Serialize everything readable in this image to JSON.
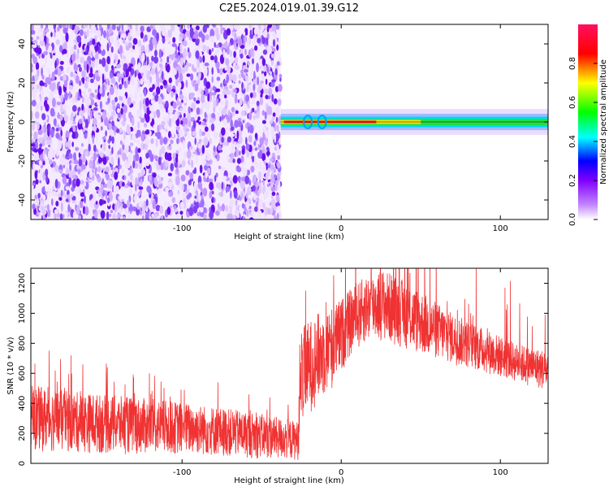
{
  "page_title": "C2E5.2024.019.01.39.G12",
  "chart_data": [
    {
      "type": "heatmap",
      "xlabel": "Height of straight line (km)",
      "ylabel": "Frequency (Hz)",
      "xlim": [
        -195,
        130
      ],
      "ylim": [
        -50,
        50
      ],
      "xticks": [
        -100,
        0,
        100
      ],
      "xtick_labels": [
        "-100",
        "0",
        "100"
      ],
      "yticks": [
        -40,
        -20,
        0,
        20,
        40
      ],
      "ytick_labels": [
        "-40",
        "-20",
        "0",
        "20",
        "40"
      ],
      "noise_region_x": [
        -195,
        -38
      ],
      "signal_band_start_km": -38,
      "signal_band_hz": [
        -3,
        3
      ],
      "grid": false,
      "colorbar": {
        "label": "Normalized spectral amplitude",
        "range": [
          0.0,
          1.0
        ],
        "ticks": [
          0.0,
          0.2,
          0.4,
          0.6,
          0.8
        ],
        "tick_labels": [
          "0.0",
          "0.2",
          "0.4",
          "0.6",
          "0.8"
        ],
        "colors": [
          "#ffffff",
          "#8000ff",
          "#0000ff",
          "#00ffff",
          "#00ff00",
          "#ffff00",
          "#ff0000",
          "#ff0080"
        ]
      }
    },
    {
      "type": "line",
      "xlabel": "Height of straight line (km)",
      "ylabel": "SNR (10 * v/v)",
      "xlim": [
        -195,
        130
      ],
      "ylim": [
        0,
        1300
      ],
      "xticks": [
        -100,
        0,
        100
      ],
      "xtick_labels": [
        "-100",
        "0",
        "100"
      ],
      "yticks": [
        0,
        200,
        400,
        600,
        800,
        1000,
        1200
      ],
      "ytick_labels": [
        "0",
        "200",
        "400",
        "600",
        "800",
        "1000",
        "1200"
      ],
      "line_color": "#f03232",
      "grid": false,
      "envelope": {
        "x": [
          -195,
          -170,
          -140,
          -110,
          -80,
          -50,
          -27,
          -25,
          -15,
          -5,
          5,
          15,
          25,
          35,
          50,
          70,
          90,
          110,
          130
        ],
        "lower": [
          80,
          70,
          60,
          60,
          50,
          30,
          20,
          250,
          400,
          500,
          700,
          800,
          820,
          780,
          720,
          660,
          600,
          540,
          480
        ],
        "upper": [
          520,
          480,
          450,
          420,
          380,
          330,
          280,
          900,
          1000,
          1050,
          1150,
          1250,
          1300,
          1250,
          1150,
          1000,
          900,
          800,
          750
        ]
      }
    }
  ]
}
